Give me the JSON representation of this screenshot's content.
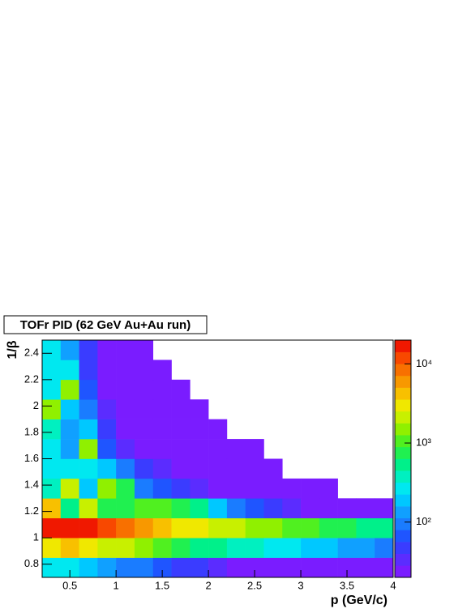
{
  "chart_data": {
    "type": "heatmap",
    "title": "TOFr PID (62 GeV Au+Au run)",
    "x_label": "p (GeV/c)",
    "y_label": "1/β",
    "xbins": [
      0.2,
      0.4,
      0.6,
      0.8,
      1.0,
      1.2,
      1.4,
      1.6,
      1.8,
      2.0,
      2.2,
      2.4,
      2.6,
      2.8,
      3.0,
      3.2,
      3.4,
      3.6,
      3.8,
      4.0
    ],
    "ybins": [
      0.7,
      0.85,
      1.0,
      1.15,
      1.3,
      1.45,
      1.6,
      1.75,
      1.9,
      2.05,
      2.2,
      2.35,
      2.5
    ],
    "z": [
      [
        300,
        300,
        200,
        150,
        100,
        80,
        60,
        50,
        40,
        30,
        25,
        20,
        15,
        12,
        10,
        8,
        6,
        5,
        5
      ],
      [
        3000,
        4000,
        3000,
        2500,
        2000,
        1500,
        1000,
        800,
        600,
        500,
        400,
        350,
        300,
        250,
        200,
        170,
        140,
        120,
        100
      ],
      [
        15000,
        20000,
        15000,
        12000,
        9000,
        6000,
        4500,
        3500,
        2800,
        2500,
        2000,
        1700,
        1400,
        1200,
        1000,
        850,
        700,
        600,
        500
      ],
      [
        5000,
        600,
        2000,
        800,
        800,
        1200,
        900,
        700,
        500,
        200,
        100,
        60,
        40,
        30,
        20,
        15,
        10,
        8,
        5
      ],
      [
        400,
        2000,
        200,
        1500,
        800,
        100,
        60,
        40,
        30,
        20,
        15,
        10,
        8,
        5,
        5,
        5,
        0,
        0,
        0
      ],
      [
        300,
        300,
        300,
        200,
        80,
        40,
        30,
        20,
        15,
        10,
        8,
        5,
        5,
        0,
        0,
        0,
        0,
        0,
        0
      ],
      [
        300,
        150,
        1500,
        60,
        30,
        20,
        15,
        10,
        8,
        5,
        5,
        5,
        0,
        0,
        0,
        0,
        0,
        0,
        0
      ],
      [
        400,
        150,
        200,
        40,
        25,
        15,
        10,
        5,
        5,
        5,
        0,
        0,
        0,
        0,
        0,
        0,
        0,
        0,
        0
      ],
      [
        1500,
        200,
        80,
        30,
        20,
        10,
        5,
        5,
        5,
        0,
        0,
        0,
        0,
        0,
        0,
        0,
        0,
        0,
        0
      ],
      [
        300,
        1500,
        60,
        25,
        15,
        10,
        5,
        5,
        0,
        0,
        0,
        0,
        0,
        0,
        0,
        0,
        0,
        0,
        0
      ],
      [
        300,
        300,
        50,
        20,
        10,
        5,
        5,
        0,
        0,
        0,
        0,
        0,
        0,
        0,
        0,
        0,
        0,
        0,
        0
      ],
      [
        300,
        150,
        40,
        20,
        10,
        5,
        0,
        0,
        0,
        0,
        0,
        0,
        0,
        0,
        0,
        0,
        0,
        0,
        0
      ]
    ],
    "xlim": [
      0.2,
      4
    ],
    "xticks": [
      0.5,
      1,
      1.5,
      2,
      2.5,
      3,
      3.5,
      4
    ],
    "ylim": [
      0.7,
      2.5
    ],
    "yticks": [
      0.8,
      1,
      1.2,
      1.4,
      1.6,
      1.8,
      2,
      2.2,
      2.4
    ],
    "zlim": [
      20,
      20000
    ],
    "zscale": "log",
    "zticks": [
      {
        "value": 100,
        "label": "10²"
      },
      {
        "value": 1000,
        "label": "10³"
      },
      {
        "value": 10000,
        "label": "10⁴"
      }
    ],
    "colorscale": [
      "#7a1cff",
      "#5b2cff",
      "#3a3cff",
      "#1f55ff",
      "#1a7cff",
      "#10a0ff",
      "#00c8ff",
      "#00e8f0",
      "#00f0c0",
      "#00f08a",
      "#20f050",
      "#50f020",
      "#90f000",
      "#c8f000",
      "#f0e800",
      "#f8c000",
      "#f89800",
      "#f87000",
      "#f84800",
      "#f01800"
    ]
  }
}
